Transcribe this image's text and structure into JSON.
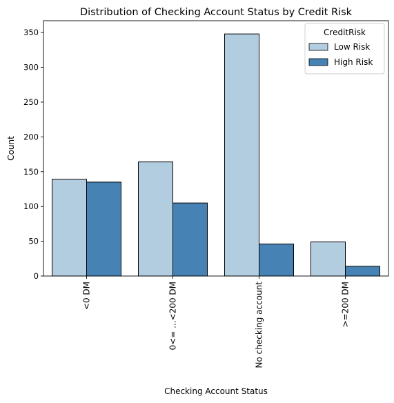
{
  "chart_data": {
    "type": "bar",
    "title": "Distribution of Checking Account Status by Credit Risk",
    "xlabel": "Checking Account Status",
    "ylabel": "Count",
    "categories": [
      "<0 DM",
      "0<= ...<200 DM",
      "No checking account",
      ">=200 DM"
    ],
    "series": [
      {
        "name": "Low Risk",
        "values": [
          139,
          164,
          348,
          49
        ],
        "color": "#b3cde0"
      },
      {
        "name": "High Risk",
        "values": [
          135,
          105,
          46,
          14
        ],
        "color": "#4682b4"
      }
    ],
    "ylim": [
      0,
      367
    ],
    "yticks": [
      0,
      50,
      100,
      150,
      200,
      250,
      300,
      350
    ],
    "legend": {
      "title": "CreditRisk",
      "placement": "top-right"
    },
    "grid": false
  }
}
